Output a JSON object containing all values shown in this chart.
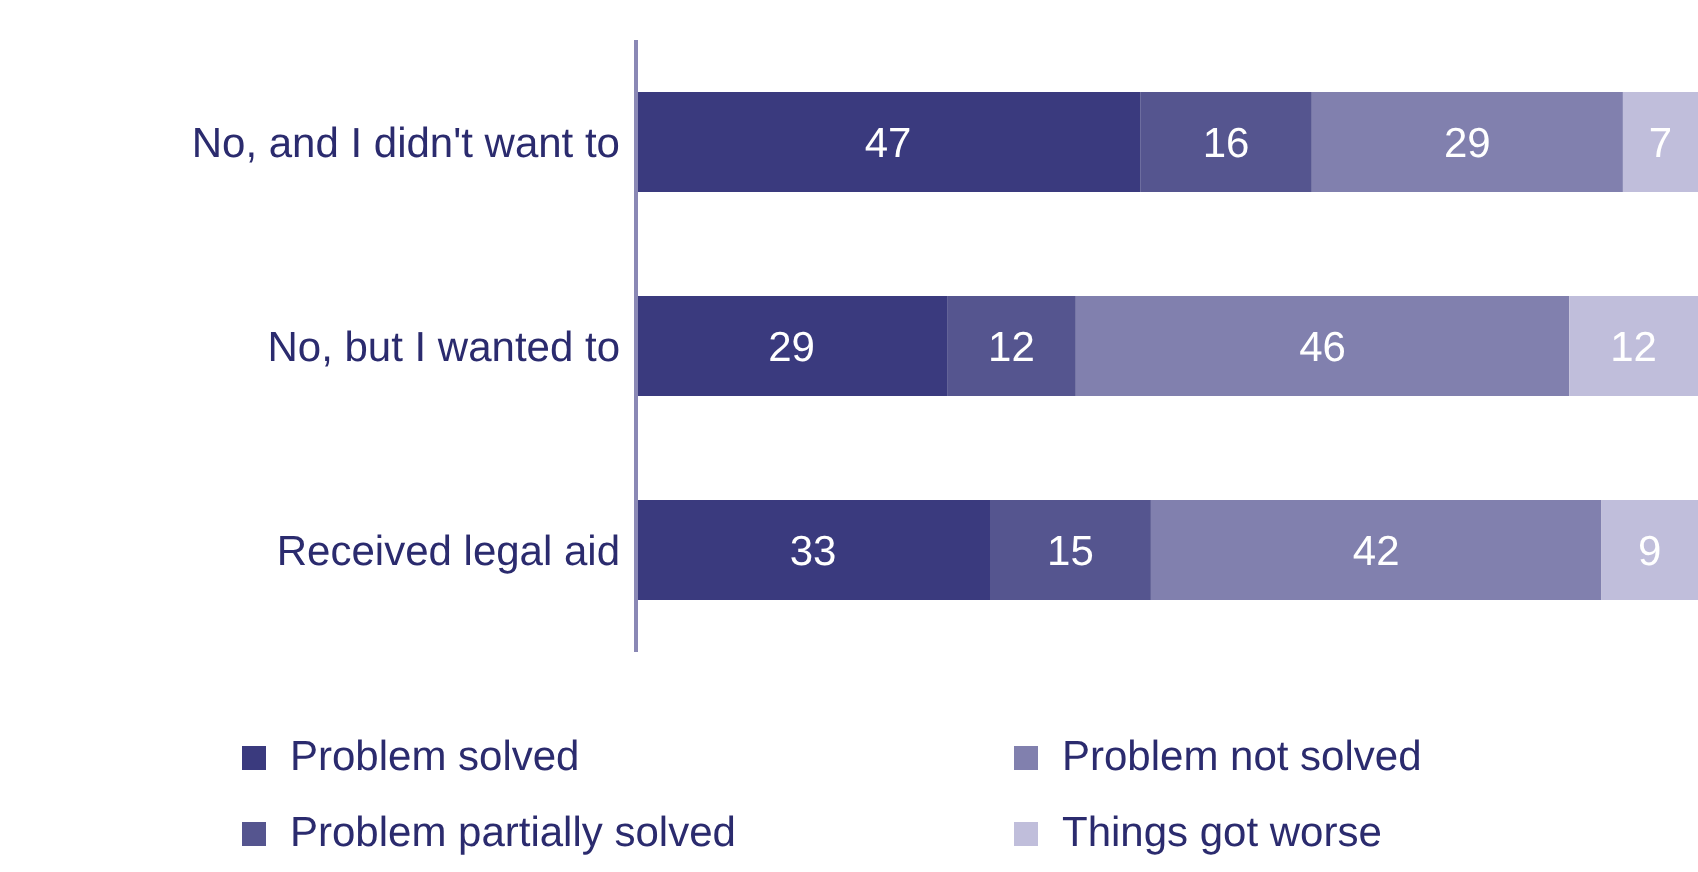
{
  "chart_data": {
    "type": "bar",
    "orientation": "horizontal",
    "stacked": true,
    "data_labels": true,
    "legend": "bottom",
    "grid": false,
    "tick_labels": "y",
    "categories": [
      "No, and I didn't want to",
      "No, but I wanted to",
      "Received legal aid"
    ],
    "series": [
      {
        "name": "Problem solved",
        "color": "#3a3a7e",
        "values": [
          47,
          29,
          33
        ]
      },
      {
        "name": "Problem partially solved",
        "color": "#55558f",
        "values": [
          16,
          12,
          15
        ]
      },
      {
        "name": "Problem not solved",
        "color": "#8180ae",
        "values": [
          29,
          46,
          42
        ]
      },
      {
        "name": "Things got worse",
        "color": "#c0bedb",
        "values": [
          7,
          12,
          9
        ]
      }
    ]
  }
}
